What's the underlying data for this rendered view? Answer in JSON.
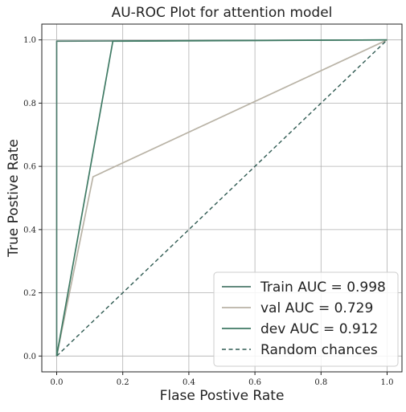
{
  "chart_data": {
    "type": "line",
    "title": "AU-ROC Plot for attention model",
    "xlabel": "Flase Postive Rate",
    "ylabel": "True Postive Rate",
    "xlim": [
      -0.045,
      1.045
    ],
    "ylim": [
      -0.05,
      1.05
    ],
    "xticks": [
      0.0,
      0.2,
      0.4,
      0.6,
      0.8,
      1.0
    ],
    "yticks": [
      0.0,
      0.2,
      0.4,
      0.6,
      0.8,
      1.0
    ],
    "xtick_labels": [
      "0.0",
      "0.2",
      "0.4",
      "0.6",
      "0.8",
      "1.0"
    ],
    "ytick_labels": [
      "0.0",
      "0.2",
      "0.4",
      "0.6",
      "0.8",
      "1.0"
    ],
    "grid": true,
    "legend_position": "bottom-right",
    "series": [
      {
        "name": "Train AUC = 0.998",
        "color": "#4d7a6b",
        "style": "solid",
        "x": [
          0.0,
          0.0,
          1.0
        ],
        "y": [
          0.0,
          0.996,
          1.0
        ]
      },
      {
        "name": "val AUC = 0.729",
        "color": "#b9b3a6",
        "style": "solid",
        "x": [
          0.0,
          0.11,
          1.0
        ],
        "y": [
          0.0,
          0.567,
          1.0
        ]
      },
      {
        "name": "dev AUC = 0.912",
        "color": "#3f7a64",
        "style": "solid",
        "x": [
          0.0,
          0.17,
          1.0
        ],
        "y": [
          0.0,
          0.996,
          1.0
        ]
      },
      {
        "name": "Random chances",
        "color": "#2f5a52",
        "style": "dashed",
        "x": [
          0.0,
          1.0
        ],
        "y": [
          0.0,
          1.0
        ]
      }
    ]
  }
}
